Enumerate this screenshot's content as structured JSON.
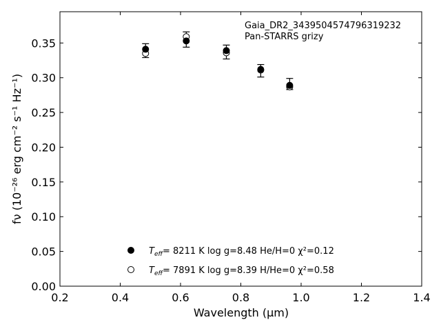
{
  "chart_data": {
    "type": "scatter",
    "xlabel": "Wavelength (μm)",
    "ylabel": "fν (10⁻²⁶ erg cm⁻² s⁻¹ Hz⁻¹)",
    "xlim": [
      0.2,
      1.4
    ],
    "ylim": [
      0.0,
      0.395
    ],
    "xticks": [
      "0.2",
      "0.4",
      "0.6",
      "0.8",
      "1.0",
      "1.2",
      "1.4"
    ],
    "yticks": [
      "0.00",
      "0.05",
      "0.10",
      "0.15",
      "0.20",
      "0.25",
      "0.30",
      "0.35"
    ],
    "grid": false,
    "annotation": {
      "line1": "Gaia_DR2_3439504574796319232",
      "line2": "Pan-STARRS grizy"
    },
    "observed": {
      "x": [
        0.484,
        0.619,
        0.752,
        0.866,
        0.962
      ],
      "y": [
        0.339,
        0.355,
        0.336,
        0.31,
        0.291
      ],
      "yerr_low": [
        0.01,
        0.011,
        0.009,
        0.009,
        0.008
      ],
      "yerr_high": [
        0.01,
        0.011,
        0.011,
        0.009,
        0.008
      ]
    },
    "series": [
      {
        "marker": "filled",
        "x": [
          0.484,
          0.619,
          0.752,
          0.866,
          0.962
        ],
        "y": [
          0.341,
          0.353,
          0.339,
          0.312,
          0.289
        ],
        "legend": {
          "teff_label": "T",
          "teff_sub": "eff",
          "text": "=  8211 K  log g=8.48  He/H=0  χ²=0.12"
        }
      },
      {
        "marker": "open",
        "x": [
          0.484,
          0.619,
          0.752,
          0.866,
          0.962
        ],
        "y": [
          0.335,
          0.359,
          0.336,
          0.311,
          0.287
        ],
        "legend": {
          "teff_label": "T",
          "teff_sub": "eff",
          "text": "=  7891 K  log g=8.39  H/He=0  χ²=0.58"
        }
      }
    ],
    "legend_position": "bottom-center"
  }
}
